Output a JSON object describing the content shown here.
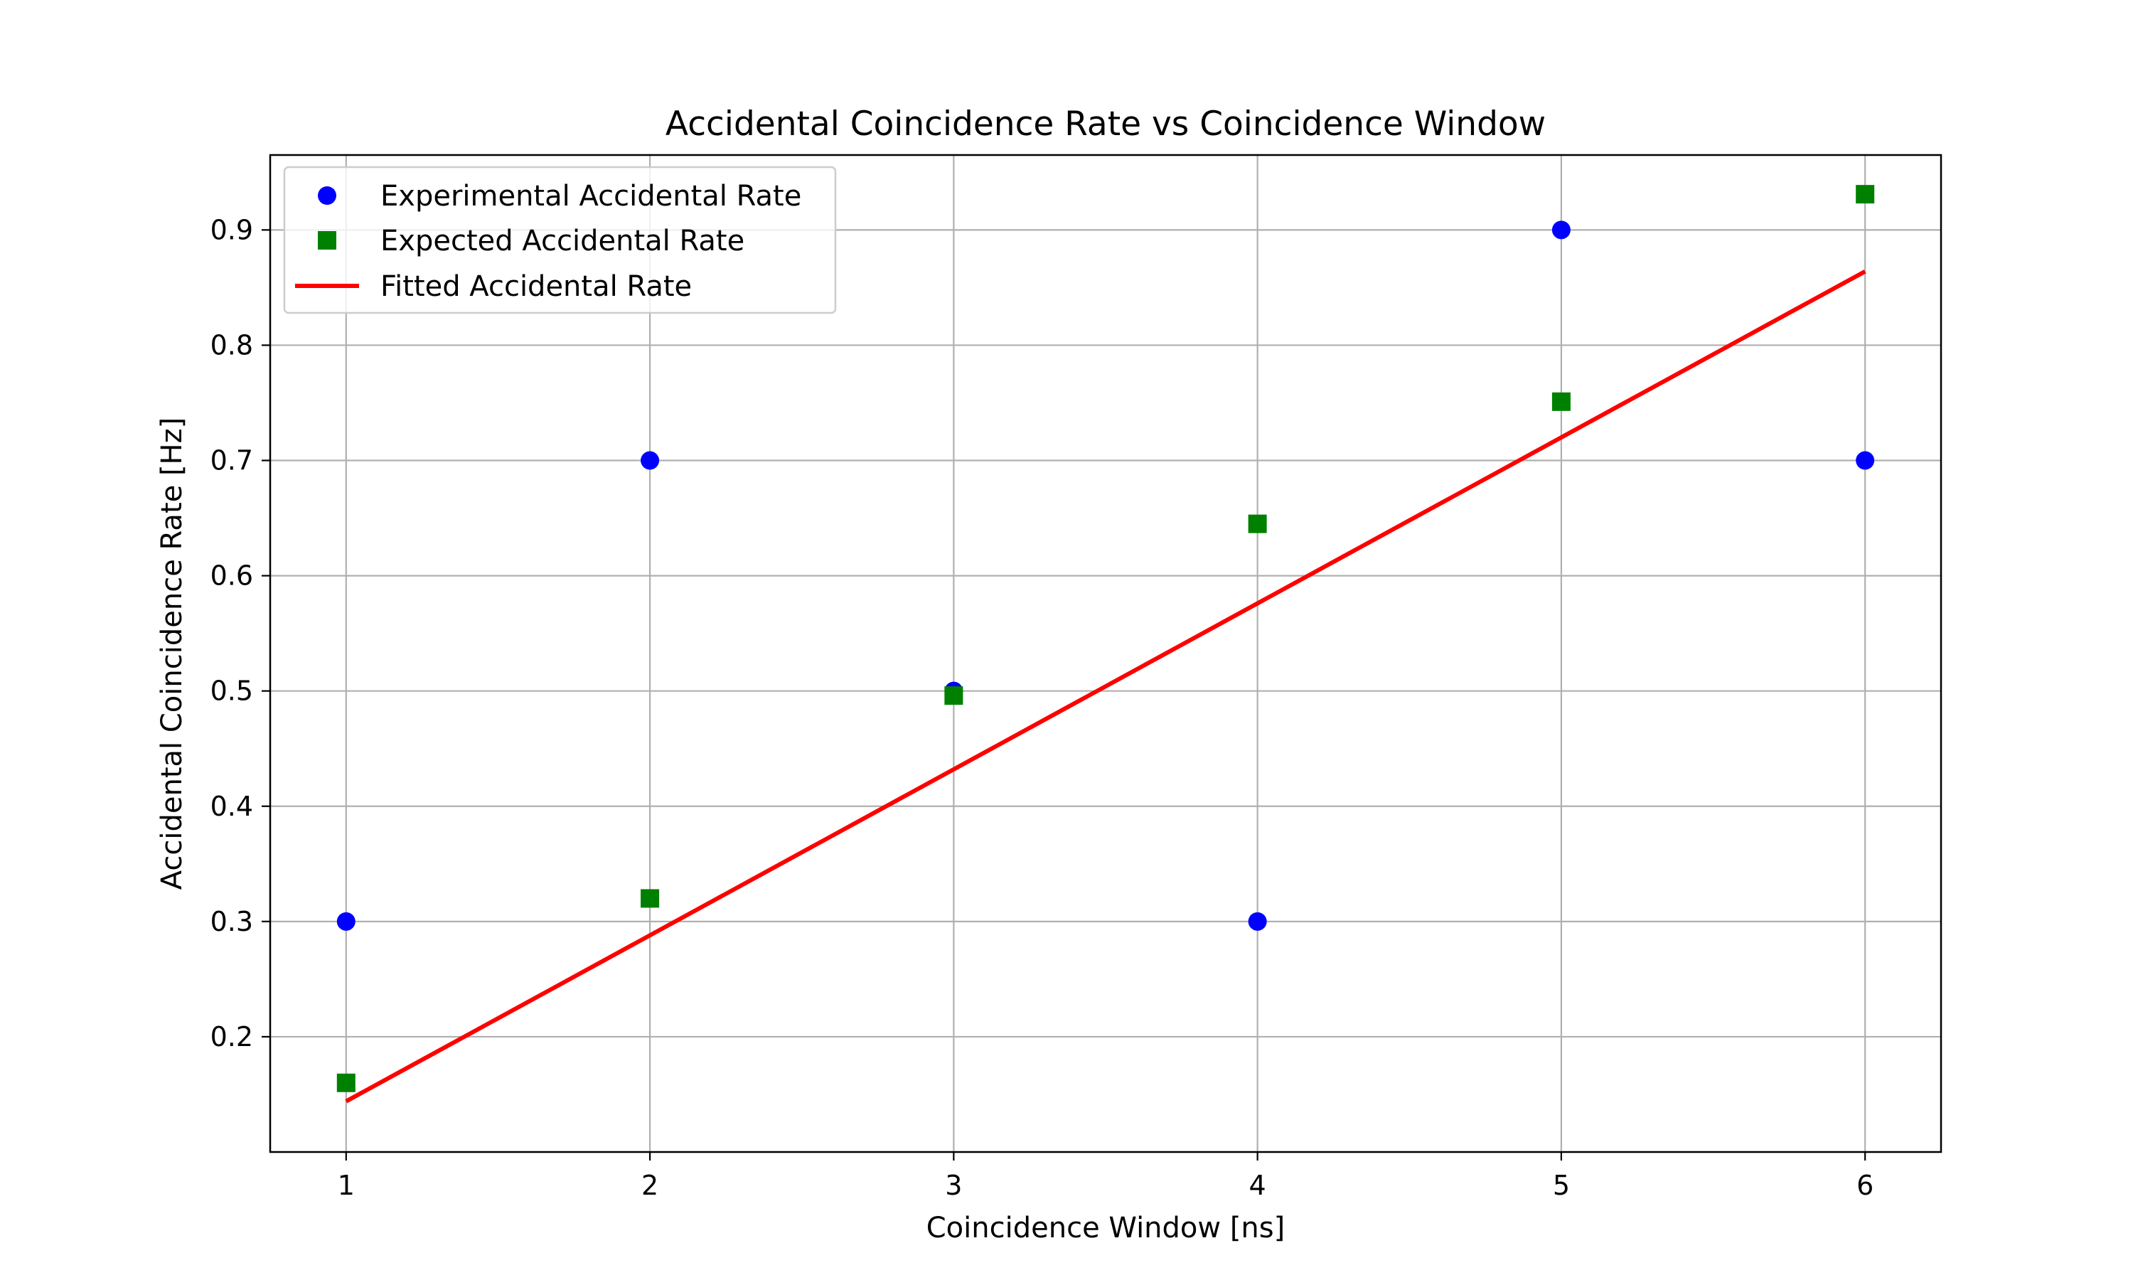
{
  "chart_data": {
    "type": "scatter",
    "title": "Accidental Coincidence Rate vs Coincidence Window",
    "xlabel": "Coincidence Window [ns]",
    "ylabel": "Accidental Coincidence Rate [Hz]",
    "xlim": [
      0.75,
      6.25
    ],
    "ylim": [
      0.1,
      0.965
    ],
    "xticks": [
      1,
      2,
      3,
      4,
      5,
      6
    ],
    "yticks": [
      0.2,
      0.3,
      0.4,
      0.5,
      0.6,
      0.7,
      0.8,
      0.9
    ],
    "grid": true,
    "legend_position": "upper-left",
    "series": [
      {
        "name": "Experimental Accidental Rate",
        "kind": "scatter",
        "marker": "circle",
        "color": "#0000ff",
        "x": [
          1,
          2,
          3,
          4,
          5,
          6
        ],
        "y": [
          0.3,
          0.7,
          0.5,
          0.3,
          0.9,
          0.7
        ]
      },
      {
        "name": "Expected Accidental Rate",
        "kind": "scatter",
        "marker": "square",
        "color": "#008000",
        "x": [
          1,
          2,
          3,
          4,
          5,
          6
        ],
        "y": [
          0.16,
          0.32,
          0.496,
          0.645,
          0.751,
          0.931
        ]
      },
      {
        "name": "Fitted Accidental Rate",
        "kind": "line",
        "color": "#ff0000",
        "x": [
          1,
          6
        ],
        "y": [
          0.144,
          0.864
        ]
      }
    ]
  }
}
